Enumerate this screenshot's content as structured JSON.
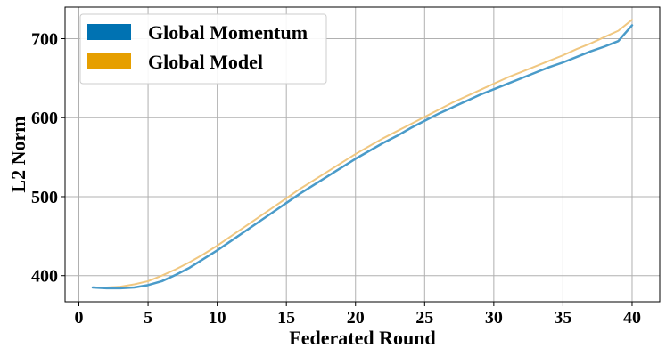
{
  "chart_data": {
    "type": "line",
    "xlabel": "Federated Round",
    "ylabel": "L2 Norm",
    "xlim": [
      -1,
      42
    ],
    "ylim": [
      367,
      740
    ],
    "x_ticks": [
      0,
      5,
      10,
      15,
      20,
      25,
      30,
      35,
      40
    ],
    "y_ticks": [
      400,
      500,
      600,
      700
    ],
    "grid": true,
    "legend_position": "upper-left",
    "series": [
      {
        "name": "Global Momentum",
        "color": "#0072b2",
        "line_color": "#4a9bc9",
        "x": [
          1,
          2,
          3,
          4,
          5,
          6,
          7,
          8,
          9,
          10,
          11,
          12,
          13,
          14,
          15,
          16,
          17,
          18,
          19,
          20,
          21,
          22,
          23,
          24,
          25,
          26,
          27,
          28,
          29,
          30,
          31,
          32,
          33,
          34,
          35,
          36,
          37,
          38,
          39,
          40
        ],
        "values": [
          385,
          384,
          384,
          385,
          388,
          393,
          401,
          410,
          421,
          432,
          444,
          456,
          468,
          480,
          492,
          504,
          515,
          526,
          537,
          548,
          558,
          568,
          577,
          587,
          596,
          605,
          613,
          621,
          629,
          636,
          643,
          650,
          657,
          664,
          670,
          677,
          684,
          690,
          697,
          717
        ]
      },
      {
        "name": "Global Model",
        "color": "#e69f00",
        "line_color": "#f0c780",
        "x": [
          1,
          2,
          3,
          4,
          5,
          6,
          7,
          8,
          9,
          10,
          11,
          12,
          13,
          14,
          15,
          16,
          17,
          18,
          19,
          20,
          21,
          22,
          23,
          24,
          25,
          26,
          27,
          28,
          29,
          30,
          31,
          32,
          33,
          34,
          35,
          36,
          37,
          38,
          39,
          40
        ],
        "values": [
          385,
          385,
          386,
          389,
          393,
          400,
          408,
          417,
          427,
          438,
          450,
          462,
          474,
          486,
          498,
          510,
          521,
          532,
          543,
          554,
          564,
          574,
          583,
          592,
          601,
          610,
          619,
          627,
          635,
          643,
          651,
          658,
          665,
          672,
          679,
          687,
          694,
          702,
          710,
          724
        ]
      }
    ]
  }
}
